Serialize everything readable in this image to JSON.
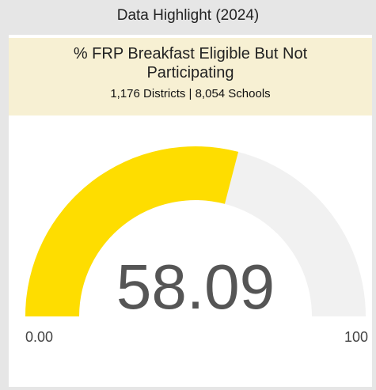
{
  "chart_data": {
    "type": "gauge",
    "title": "Data Highlight (2024)",
    "subtitle": "% FRP Breakfast Eligible But Not Participating",
    "annotation": "1,176 Districts | 8,054 Schools",
    "value": 58.09,
    "color": "#fedd00",
    "track_color": "#f1f1f1",
    "ylim": [
      0,
      100
    ],
    "yticks": [
      {
        "value": 0,
        "label": "0.00"
      },
      100
    ]
  }
}
